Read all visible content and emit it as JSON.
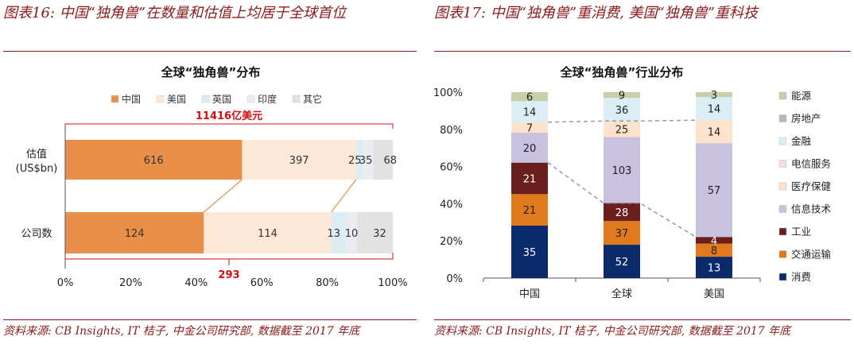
{
  "left": {
    "fig_title": "图表16: 中国“独角兽”在数量和估值上均居于全球首位",
    "source": "资料来源: CB Insights, IT 桔子, 中金公司研究部, 数据截至 2017 年底"
  },
  "right": {
    "fig_title": "图表17: 中国“独角兽”重消费, 美国“独角兽”重科技",
    "source": "资料来源: CB Insights, IT 桔子, 中金公司研究部, 数据截至 2017 年底"
  },
  "chart_data": [
    {
      "type": "bar",
      "orientation": "horizontal",
      "stacked": "percent",
      "title": "全球“独角兽”分布",
      "categories": [
        "估值\n(US$bn)",
        "公司数"
      ],
      "series": [
        {
          "name": "中国",
          "values": [
            616,
            124
          ],
          "color": "#e8904a"
        },
        {
          "name": "美国",
          "values": [
            397,
            114
          ],
          "color": "#fde7d6"
        },
        {
          "name": "英国",
          "values": [
            25,
            13
          ],
          "color": "#dcecf3"
        },
        {
          "name": "印度",
          "values": [
            35,
            10
          ],
          "color": "#ebebf2"
        },
        {
          "name": "其它",
          "values": [
            68,
            32
          ],
          "color": "#e2e2e2"
        }
      ],
      "xlim": [
        0,
        100
      ],
      "xticks": [
        "0%",
        "20%",
        "40%",
        "60%",
        "80%",
        "100%"
      ],
      "annotations": [
        {
          "text": "11416亿美元",
          "color": "#d01010"
        },
        {
          "text": "293",
          "color": "#d01010"
        }
      ],
      "legend": "top"
    },
    {
      "type": "bar",
      "stacked": "percent",
      "title": "全球“独角兽”行业分布",
      "categories": [
        "中国",
        "全球",
        "美国"
      ],
      "series": [
        {
          "name": "消费",
          "values": [
            35,
            52,
            13
          ],
          "color": "#0b2a6b"
        },
        {
          "name": "交通运输",
          "values": [
            21,
            37,
            8
          ],
          "color": "#e07a1c"
        },
        {
          "name": "工业",
          "values": [
            21,
            28,
            4
          ],
          "color": "#6b1e1e"
        },
        {
          "name": "信息技术",
          "values": [
            20,
            103,
            57
          ],
          "color": "#c9c1e0"
        },
        {
          "name": "医疗保健",
          "values": [
            7,
            25,
            14
          ],
          "color": "#fde3cc"
        },
        {
          "name": "电信服务",
          "values": [
            0,
            0,
            0
          ],
          "color": "#f6dede"
        },
        {
          "name": "金融",
          "values": [
            14,
            36,
            14
          ],
          "color": "#dceef5"
        },
        {
          "name": "房地产",
          "values": [
            0,
            0,
            0
          ],
          "color": "#b8b5c0"
        },
        {
          "name": "能源",
          "values": [
            6,
            9,
            3
          ],
          "color": "#c5cfa8"
        }
      ],
      "ylim": [
        0,
        100
      ],
      "yticks": [
        "0%",
        "20%",
        "40%",
        "60%",
        "80%",
        "100%"
      ],
      "legend": "right"
    }
  ]
}
